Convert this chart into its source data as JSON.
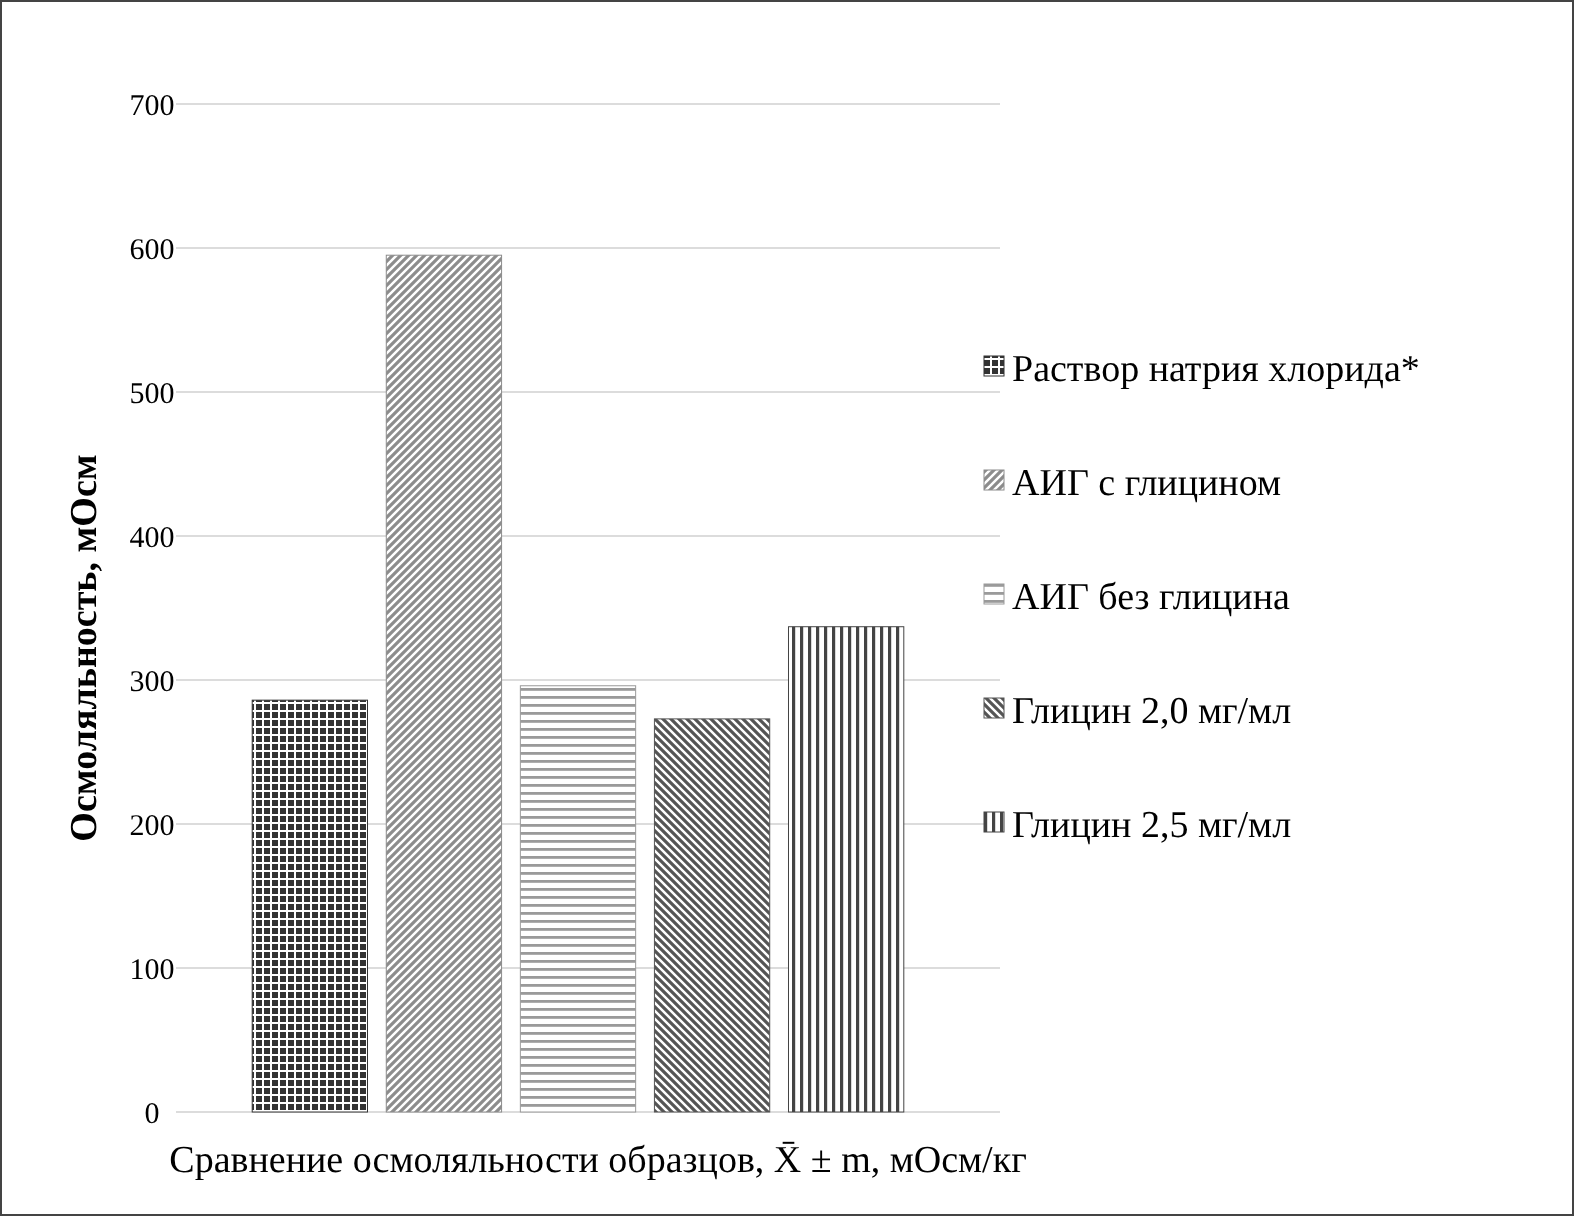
{
  "chart_data": {
    "type": "bar",
    "categories": [
      null
    ],
    "xlabel": "Сравнение осмоляльности образцов, X̄ ± m, мОсм/кг",
    "ylabel": "Осмоляльность, мОсм",
    "series": [
      {
        "name": "Раствор натрия хлорида*",
        "color": "#333333",
        "values": [
          286
        ]
      },
      {
        "name": "АИГ с глицином",
        "color": "#8c8c8c",
        "values": [
          595
        ]
      },
      {
        "name": "АИГ без глицина",
        "color": "#9a9a9a",
        "values": [
          296
        ]
      },
      {
        "name": "Глицин 2,0 мг/мл",
        "color": "#555555",
        "values": [
          273
        ]
      },
      {
        "name": "Глицин 2,5 мг/мл",
        "color": "#444444",
        "values": [
          337
        ]
      }
    ],
    "ylim": [
      0,
      700
    ],
    "yticks": [
      0,
      100,
      200,
      300,
      400,
      500,
      600,
      700
    ],
    "grid": "y",
    "legend": "right"
  }
}
